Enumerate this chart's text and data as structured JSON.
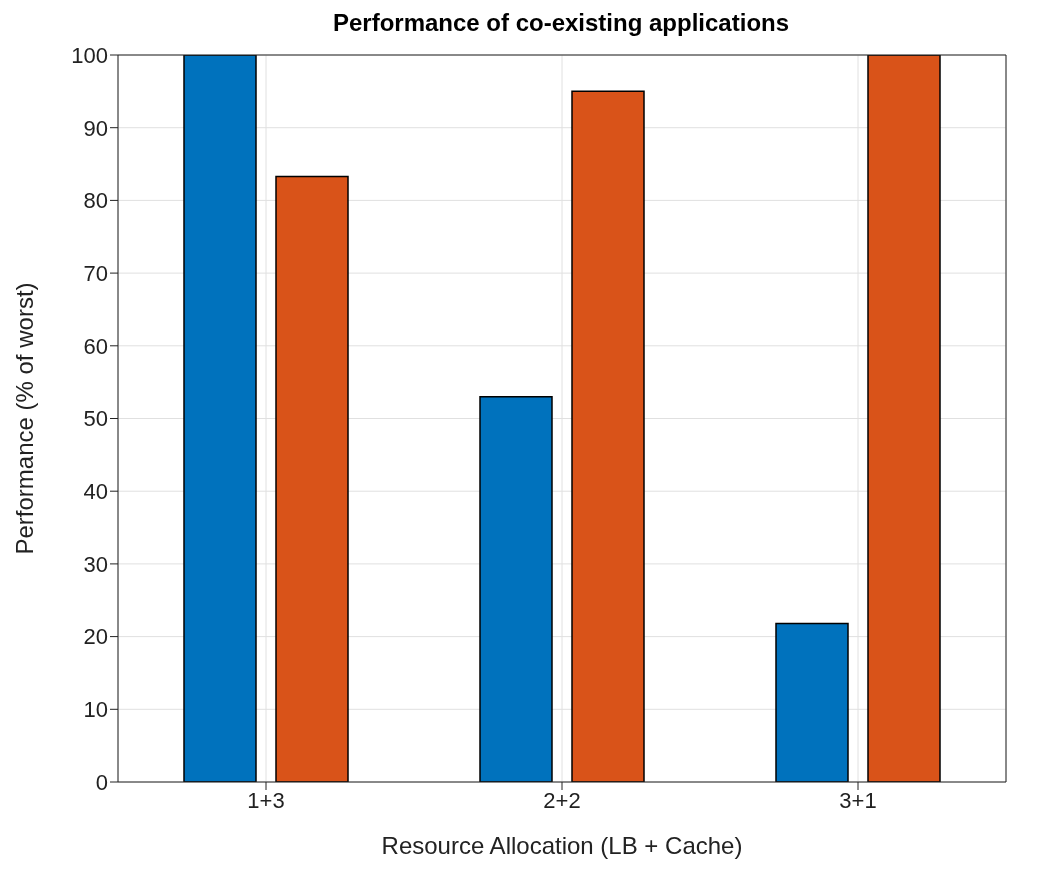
{
  "chart_data": {
    "type": "bar",
    "title": "Performance of co-existing applications",
    "xlabel": "Resource Allocation (LB + Cache)",
    "ylabel": "Performance (% of worst)",
    "categories": [
      "1+3",
      "2+2",
      "3+1"
    ],
    "series": [
      {
        "color": "#0072bd",
        "values": [
          100,
          53,
          21.8
        ]
      },
      {
        "color": "#d95319",
        "values": [
          83.3,
          95,
          100
        ]
      }
    ],
    "ylim": [
      0,
      100
    ],
    "yticks": [
      0,
      10,
      20,
      30,
      40,
      50,
      60,
      70,
      80,
      90,
      100
    ],
    "grid": true
  }
}
